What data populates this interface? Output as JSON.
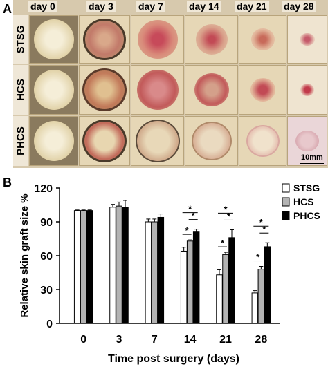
{
  "panel_a": {
    "letter": "A",
    "days": [
      "day 0",
      "day 3",
      "day 7",
      "day 14",
      "day 21",
      "day 28"
    ],
    "rows": [
      "STSG",
      "HCS",
      "PHCS"
    ],
    "scale_bar": "10mm"
  },
  "panel_b": {
    "letter": "B"
  },
  "chart_data": {
    "type": "bar",
    "categories": [
      "0",
      "3",
      "7",
      "14",
      "21",
      "28"
    ],
    "series": [
      {
        "name": "STSG",
        "values": [
          100,
          103,
          90,
          64,
          43,
          27
        ],
        "errors": [
          0.5,
          2.5,
          2.5,
          3.5,
          4.5,
          2
        ],
        "color": "#ffffff"
      },
      {
        "name": "HCS",
        "values": [
          100,
          104,
          90,
          73,
          61,
          48
        ],
        "errors": [
          0.5,
          3.5,
          2.5,
          1,
          2,
          2.5
        ],
        "color": "#b3b3b3"
      },
      {
        "name": "PHCS",
        "values": [
          100,
          103,
          94,
          81,
          76,
          68
        ],
        "errors": [
          0.5,
          6,
          3,
          2.5,
          7,
          3.5
        ],
        "color": "#000000"
      }
    ],
    "xlabel": "Time post surgery (days)",
    "ylabel": "Relative skin graft size %",
    "ylim": [
      0,
      120
    ],
    "yticks": [
      "0",
      "30",
      "60",
      "90",
      "120"
    ],
    "significance_marker": "*",
    "legend_position": "top-right",
    "grid": false
  }
}
